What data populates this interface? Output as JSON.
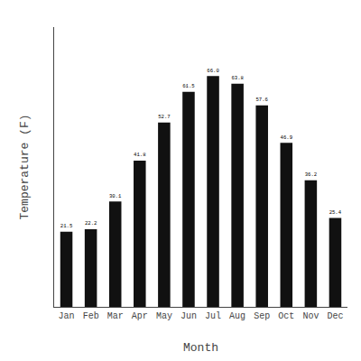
{
  "chart_data": {
    "type": "bar",
    "xlabel": "Month",
    "ylabel": "Temperature (F)",
    "categories": [
      "Jan",
      "Feb",
      "Mar",
      "Apr",
      "May",
      "Jun",
      "Jul",
      "Aug",
      "Sep",
      "Oct",
      "Nov",
      "Dec"
    ],
    "values": [
      21.5,
      22.2,
      30.1,
      41.8,
      52.7,
      61.5,
      66.0,
      63.8,
      57.6,
      46.9,
      36.2,
      25.4
    ],
    "value_labels": [
      "21.5",
      "22.2",
      "30.1",
      "41.8",
      "52.7",
      "61.5",
      "66.0",
      "63.8",
      "57.6",
      "46.9",
      "36.2",
      "25.4"
    ],
    "color": "#111111",
    "ylim": [
      0,
      80
    ],
    "grid": false,
    "data_labels": true,
    "tick_labels": "x"
  }
}
